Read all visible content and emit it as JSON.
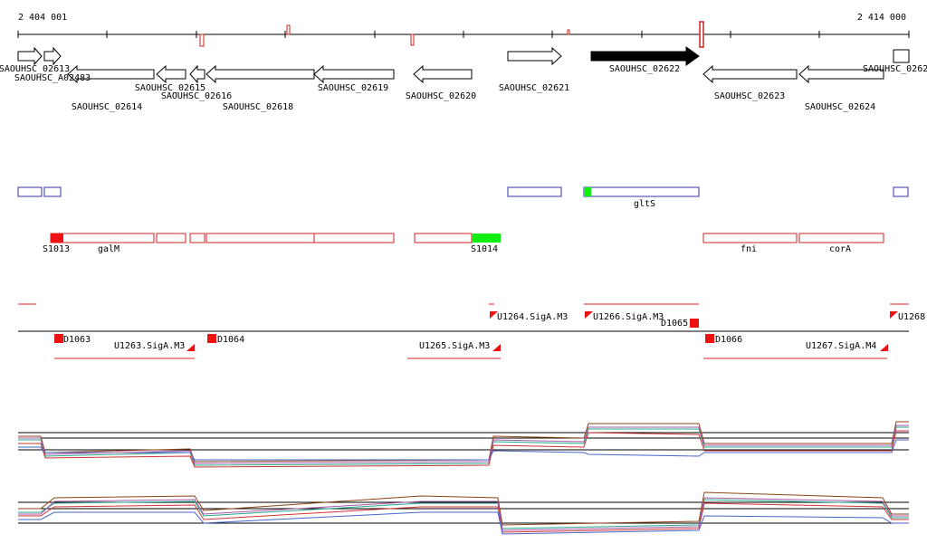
{
  "ruler": {
    "start": "2 404 001",
    "end": "2 414 000"
  },
  "genes": [
    "SAOUHSC_02613",
    "SAOUHSC_A02483",
    "SAOUHSC_02614",
    "SAOUHSC_02615",
    "SAOUHSC_02616",
    "SAOUHSC_02618",
    "SAOUHSC_02619",
    "SAOUHSC_02620",
    "SAOUHSC_02621",
    "SAOUHSC_02622",
    "SAOUHSC_02623",
    "SAOUHSC_02624",
    "SAOUHSC_0262"
  ],
  "annotations": [
    "gltS",
    "S1013",
    "galM",
    "S1014",
    "fni",
    "corA"
  ],
  "transcripts": [
    "D1063",
    "U1263.SigA.M3",
    "D1064",
    "U1264.SigA.M3",
    "U1265.SigA.M3",
    "U1266.SigA.M3",
    "D1065",
    "D1066",
    "U1267.SigA.M4",
    "U1268"
  ]
}
